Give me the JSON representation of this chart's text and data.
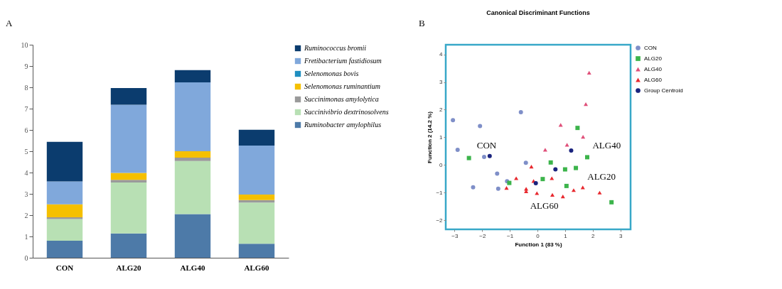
{
  "chart_data": [
    {
      "type": "bar",
      "stacked": true,
      "annotations": [
        "A"
      ],
      "categories": [
        "CON",
        "ALG20",
        "ALG40",
        "ALG60"
      ],
      "ylim": [
        0,
        10
      ],
      "yticks": [
        0,
        1,
        2,
        3,
        4,
        5,
        6,
        7,
        8,
        9,
        10
      ],
      "grid": false,
      "legend": "right",
      "series": [
        {
          "name": "Ruminobacter amylophilus",
          "color": "#4d7aa8",
          "values": [
            0.8,
            1.14,
            2.05,
            0.66
          ]
        },
        {
          "name": "Succinivibrio dextrinosolvens",
          "color": "#b8e0b4",
          "values": [
            1.02,
            2.39,
            2.49,
            1.93
          ]
        },
        {
          "name": "Succinimonas amylolytica",
          "color": "#9a9a9a",
          "values": [
            0.08,
            0.13,
            0.16,
            0.12
          ]
        },
        {
          "name": "Selenomonas ruminantium",
          "color": "#f5c000",
          "values": [
            0.61,
            0.32,
            0.3,
            0.26
          ]
        },
        {
          "name": "Selenomonas bovis",
          "color": "#1f8fc0",
          "values": [
            0,
            0,
            0,
            0
          ]
        },
        {
          "name": "Fretibacterium fastidiosum",
          "color": "#80a8db",
          "values": [
            1.07,
            3.2,
            3.23,
            2.3
          ]
        },
        {
          "name": "Ruminococcus bromii",
          "color": "#0b3c6e",
          "values": [
            1.86,
            0.79,
            0.58,
            0.74
          ]
        }
      ]
    },
    {
      "type": "scatter",
      "title": "Canonical Discriminant Functions",
      "xlabel": "Function 1 (83 %)",
      "ylabel": "Function 2 (14.2 %)",
      "xlim": [
        -3.32,
        3.37
      ],
      "ylim": [
        -2.33,
        4.35
      ],
      "xticks": [
        -3,
        -2,
        -1,
        0,
        1,
        2,
        3
      ],
      "yticks": [
        -2,
        -1,
        0,
        1,
        2,
        3,
        4
      ],
      "grid": false,
      "legend": "right",
      "annotations": [
        "B",
        "CON",
        "ALG20",
        "ALG40",
        "ALG60"
      ],
      "series": [
        {
          "name": "CON",
          "color": "#7f8fc8",
          "marker": "circle",
          "x": [
            -3.06,
            -2.08,
            -0.6,
            -2.89,
            -1.93,
            -1.46,
            -2.33,
            -1.42,
            -1.1,
            -0.42
          ],
          "values": [
            1.62,
            1.41,
            1.91,
            0.55,
            0.29,
            -0.31,
            -0.81,
            -0.86,
            -0.59,
            0.08
          ]
        },
        {
          "name": "ALG20",
          "color": "#3cb44b",
          "marker": "square",
          "x": [
            1.45,
            -2.48,
            -1.02,
            0.48,
            1.0,
            1.39,
            1.8,
            1.05,
            2.68,
            0.19
          ],
          "values": [
            1.34,
            0.25,
            -0.65,
            0.09,
            -0.16,
            -0.11,
            0.28,
            -0.76,
            -1.35,
            -0.51
          ]
        },
        {
          "name": "ALG40",
          "color": "#e0507a",
          "marker": "triangle",
          "x": [
            1.87,
            1.75,
            0.84,
            1.65,
            1.07,
            0.28
          ],
          "values": [
            3.34,
            2.2,
            1.45,
            1.02,
            0.73,
            0.55
          ]
        },
        {
          "name": "ALG60",
          "color": "#e8282e",
          "marker": "triangle",
          "x": [
            -0.22,
            -0.77,
            -0.14,
            -1.12,
            -0.41,
            -0.41,
            -0.02,
            0.52,
            0.54,
            0.92,
            1.31,
            1.64,
            2.25
          ],
          "values": [
            -0.06,
            -0.48,
            -0.58,
            -0.83,
            -0.86,
            -0.95,
            -1.02,
            -0.48,
            -1.08,
            -1.14,
            -0.91,
            -0.81,
            -1.0
          ]
        },
        {
          "name": "Group Centroid",
          "color": "#1a237e",
          "marker": "circle",
          "x": [
            -1.73,
            0.65,
            1.22,
            -0.06
          ],
          "values": [
            0.32,
            -0.16,
            0.52,
            -0.66
          ]
        }
      ]
    }
  ]
}
